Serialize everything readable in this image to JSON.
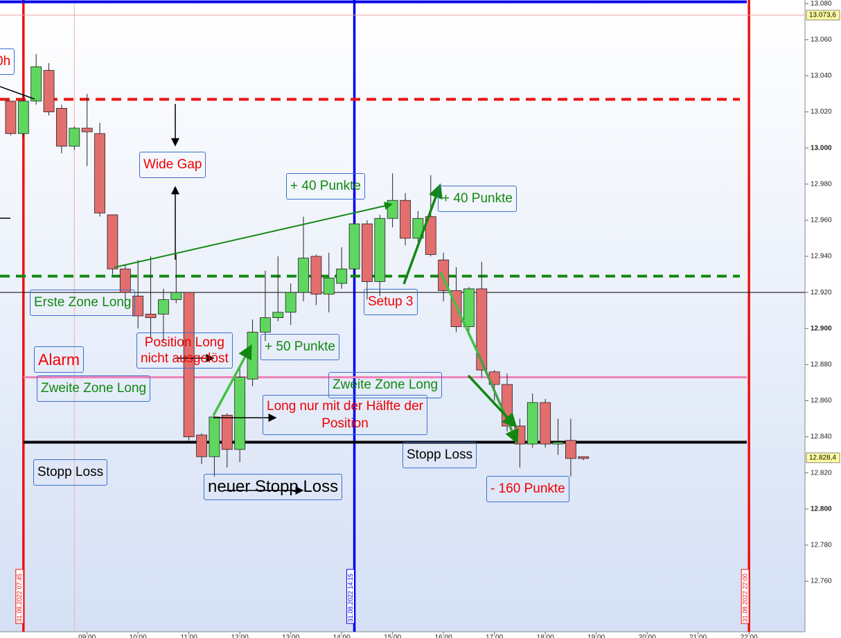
{
  "chart_data": {
    "type": "candlestick",
    "xlim": [
      7.29,
      23.1
    ],
    "ylim": [
      12732,
      13082
    ],
    "yticks": [
      {
        "value": 12760,
        "label": "12.760"
      },
      {
        "value": 12780,
        "label": "12.780"
      },
      {
        "value": 12800,
        "label": "12.800"
      },
      {
        "value": 12820,
        "label": "12.820"
      },
      {
        "value": 12840,
        "label": "12.840"
      },
      {
        "value": 12860,
        "label": "12.860"
      },
      {
        "value": 12880,
        "label": "12.880"
      },
      {
        "value": 12900,
        "label": "12.900"
      },
      {
        "value": 12920,
        "label": "12.920"
      },
      {
        "value": 12940,
        "label": "12.940"
      },
      {
        "value": 12960,
        "label": "12.960"
      },
      {
        "value": 12980,
        "label": "12.980"
      },
      {
        "value": 13000,
        "label": "13.000"
      },
      {
        "value": 13020,
        "label": "13.020"
      },
      {
        "value": 13040,
        "label": "13.040"
      },
      {
        "value": 13060,
        "label": "13.060"
      },
      {
        "value": 13080,
        "label": "13.080"
      }
    ],
    "xticks": [
      {
        "value": 9,
        "label": "09:00"
      },
      {
        "value": 10,
        "label": "10:00"
      },
      {
        "value": 11,
        "label": "11:00"
      },
      {
        "value": 12,
        "label": "12:00"
      },
      {
        "value": 13,
        "label": "13:00"
      },
      {
        "value": 14,
        "label": "14:00"
      },
      {
        "value": 15,
        "label": "15:00"
      },
      {
        "value": 16,
        "label": "16:00"
      },
      {
        "value": 17,
        "label": "17:00"
      },
      {
        "value": 18,
        "label": "18:00"
      },
      {
        "value": 19,
        "label": "19:00"
      },
      {
        "value": 20,
        "label": "20:00"
      },
      {
        "value": 21,
        "label": "21:00"
      },
      {
        "value": 22,
        "label": "22:00"
      }
    ],
    "x": [
      7.5,
      7.75,
      8,
      8.25,
      8.5,
      8.75,
      9,
      9.25,
      9.5,
      9.75,
      10,
      10.25,
      10.5,
      10.75,
      11,
      11.25,
      11.5,
      11.75,
      12,
      12.25,
      12.5,
      12.75,
      13,
      13.25,
      13.5,
      13.75,
      14,
      14.25,
      14.5,
      14.75,
      15,
      15.25,
      15.5,
      15.75,
      16,
      16.25,
      16.5,
      16.75,
      17,
      17.25,
      17.5,
      17.75,
      18,
      18.25,
      18.5,
      18.75
    ],
    "open": [
      13026,
      13008,
      13026,
      13043,
      13022,
      13001,
      13011,
      13008,
      12963,
      12933,
      12918,
      12908,
      12908,
      12916,
      12920,
      12841,
      12829,
      12852,
      12833,
      12872,
      12898,
      12906,
      12909,
      12920,
      12940,
      12919,
      12925,
      12933,
      12958,
      12926,
      12961,
      12971,
      12950,
      12962,
      12938,
      12921,
      12901,
      12922,
      12876,
      12869,
      12846,
      12836,
      12859,
      12836,
      12838,
      12829
    ],
    "high": [
      13026,
      13030,
      13052,
      13047,
      13024,
      13012,
      13030,
      13014,
      12963,
      12935,
      12938,
      12940,
      12922,
      12941,
      12920,
      12842,
      12852,
      12853,
      12880,
      12905,
      12932,
      12940,
      12925,
      12962,
      12941,
      12942,
      12945,
      12960,
      12960,
      12963,
      12986,
      12975,
      12965,
      12985,
      12942,
      12934,
      12923,
      12937,
      12877,
      12875,
      12850,
      12864,
      12861,
      12850,
      12850,
      12829
    ],
    "low": [
      13007,
      13006,
      13024,
      13018,
      12997,
      12999,
      12990,
      12962,
      12930,
      12912,
      12900,
      12895,
      12893,
      12914,
      12838,
      12825,
      12818,
      12823,
      12826,
      12868,
      12893,
      12904,
      12902,
      12915,
      12913,
      12909,
      12922,
      12929,
      12916,
      12918,
      12956,
      12946,
      12948,
      12940,
      12915,
      12898,
      12896,
      12873,
      12860,
      12843,
      12823,
      12834,
      12834,
      12830,
      12818,
      12827
    ],
    "close": [
      13008,
      13026,
      13045,
      13020,
      13001,
      13011,
      13009,
      12964,
      12933,
      12920,
      12907,
      12906,
      12916,
      12920,
      12840,
      12829,
      12851,
      12833,
      12873,
      12898,
      12906,
      12909,
      12920,
      12939,
      12919,
      12928,
      12933,
      12958,
      12926,
      12961,
      12971,
      12950,
      12961,
      12941,
      12921,
      12901,
      12922,
      12877,
      12869,
      12846,
      12836,
      12859,
      12836,
      12837,
      12828,
      12828
    ],
    "up_color": "#5fd65f",
    "down_color": "#e36e6e",
    "levels": [
      {
        "value": 13027,
        "color": "#ee1111",
        "style": "dashed"
      },
      {
        "value": 12929,
        "color": "#118811",
        "style": "dashed"
      },
      {
        "value": 12873,
        "color": "#f080b8",
        "style": "solid"
      },
      {
        "value": 12837,
        "color": "#000000",
        "style": "solid"
      },
      {
        "value": 12920,
        "color": "#000000",
        "style": "thin"
      },
      {
        "value": 13073.6,
        "color": "#f0a0a0",
        "style": "thin"
      },
      {
        "value": 13081,
        "color": "#0000ee",
        "style": "solid"
      }
    ],
    "markers": [
      {
        "x": 7.75,
        "label": "31.08.2022 07:45",
        "color": "#ee1111"
      },
      {
        "x": 14.25,
        "label": "31.08.2022 14:15",
        "color": "#0000ee"
      },
      {
        "x": 22,
        "label": "31.08.2022 22:00",
        "color": "#ee1111"
      },
      {
        "x": 8.75,
        "color": "#f0b0b0"
      }
    ],
    "price_labels": [
      {
        "value": 13073.6,
        "label": "13.073,6"
      },
      {
        "value": 12828.4,
        "label": "12.828,4"
      }
    ],
    "annotations": [
      "0h",
      "Wide Gap",
      "+ 40 Punkte",
      "+ 40 Punkte",
      "Erste Zone Long",
      "Setup 3",
      "Position Long\nnicht ausgelöst",
      "+ 50 Punkte",
      "Alarm",
      "Zweite Zone Long",
      "Zweite Zone Long",
      "Long nur mit der Hälfte der\nPosition",
      "Stopp Loss",
      "Stopp Loss",
      "neuer Stopp Loss",
      "- 160 Punkte"
    ]
  }
}
